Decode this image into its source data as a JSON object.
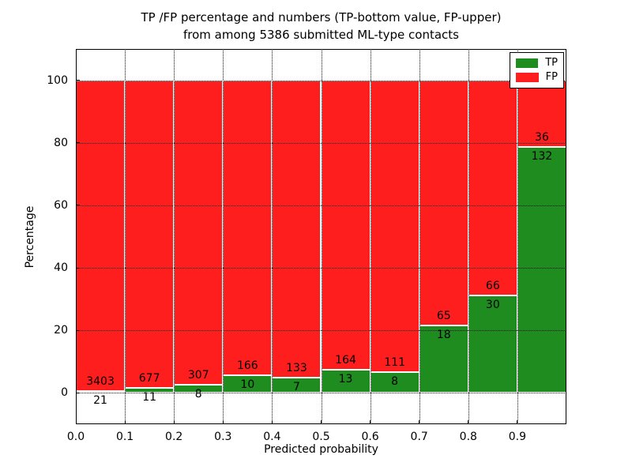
{
  "chart_data": {
    "type": "bar",
    "stacked": true,
    "normalized_to_percent": true,
    "title_line1": "TP /FP percentage and numbers (TP-bottom value, FP-upper)",
    "title_line2": "from among 5386 submitted ML-type contacts",
    "xlabel": "Predicted probability",
    "ylabel": "Percentage",
    "total_contacts": 5386,
    "xlim": [
      0.0,
      1.0
    ],
    "ylim": [
      -10,
      110
    ],
    "bin_edges": [
      0.0,
      0.1,
      0.2,
      0.3,
      0.4,
      0.5,
      0.6,
      0.7,
      0.8,
      0.9,
      1.0
    ],
    "x_tick_values": [
      0.0,
      0.1,
      0.2,
      0.3,
      0.4,
      0.5,
      0.6,
      0.7,
      0.8,
      0.9
    ],
    "x_tick_labels": [
      "0.0",
      "0.1",
      "0.2",
      "0.3",
      "0.4",
      "0.5",
      "0.6",
      "0.7",
      "0.8",
      "0.9"
    ],
    "y_tick_values": [
      0,
      20,
      40,
      60,
      80,
      100
    ],
    "y_tick_labels": [
      "0",
      "20",
      "40",
      "60",
      "80",
      "100"
    ],
    "grid": {
      "on": true,
      "style": "dotted"
    },
    "series": [
      {
        "name": "TP",
        "color": "#1f8c1f",
        "counts": [
          21,
          11,
          8,
          10,
          7,
          13,
          8,
          18,
          30,
          132
        ]
      },
      {
        "name": "FP",
        "color": "#ff1e1e",
        "counts": [
          3403,
          677,
          307,
          166,
          133,
          164,
          111,
          65,
          66,
          36
        ]
      }
    ],
    "tp_percent": [
      0.61,
      1.6,
      2.54,
      5.68,
      5.0,
      7.34,
      6.72,
      21.69,
      31.25,
      78.57
    ],
    "fp_percent": [
      99.39,
      98.4,
      97.46,
      94.32,
      95.0,
      92.66,
      93.28,
      78.31,
      68.75,
      21.43
    ],
    "legend": {
      "position": "upper right",
      "entries": [
        {
          "label": "TP",
          "color": "#1f8c1f"
        },
        {
          "label": "FP",
          "color": "#ff1e1e"
        }
      ]
    },
    "annotation_note": "FP count printed just above TP/FP boundary, TP count just below"
  }
}
